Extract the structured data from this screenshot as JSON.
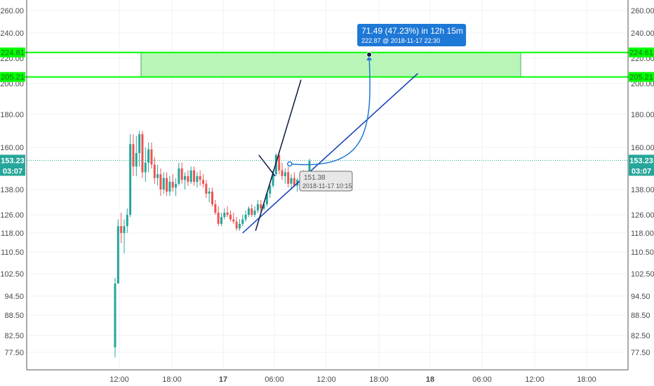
{
  "chart_data": {
    "type": "candlestick",
    "y_ticks": [
      "260.00",
      "240.00",
      "220.00",
      "200.00",
      "180.00",
      "160.00",
      "138.00",
      "126.00",
      "118.00",
      "110.50",
      "102.50",
      "94.50",
      "88.50",
      "82.50",
      "77.50"
    ],
    "x_ticks": [
      "12:00",
      "18:00",
      "17",
      "06:00",
      "12:00",
      "18:00",
      "18",
      "06:00",
      "12:00",
      "18:00"
    ],
    "grid": true,
    "candles": [
      {
        "o": 79,
        "h": 101,
        "l": 76,
        "c": 99
      },
      {
        "o": 99,
        "h": 124,
        "l": 99,
        "c": 121
      },
      {
        "o": 121,
        "h": 127,
        "l": 114,
        "c": 118
      },
      {
        "o": 118,
        "h": 124,
        "l": 110,
        "c": 121
      },
      {
        "o": 121,
        "h": 129,
        "l": 118,
        "c": 126
      },
      {
        "o": 126,
        "h": 168,
        "l": 125,
        "c": 162
      },
      {
        "o": 162,
        "h": 168,
        "l": 145,
        "c": 150
      },
      {
        "o": 150,
        "h": 167,
        "l": 145,
        "c": 157
      },
      {
        "o": 157,
        "h": 170,
        "l": 150,
        "c": 168
      },
      {
        "o": 168,
        "h": 170,
        "l": 144,
        "c": 147
      },
      {
        "o": 147,
        "h": 160,
        "l": 142,
        "c": 152
      },
      {
        "o": 152,
        "h": 163,
        "l": 147,
        "c": 159
      },
      {
        "o": 159,
        "h": 163,
        "l": 149,
        "c": 151
      },
      {
        "o": 151,
        "h": 155,
        "l": 141,
        "c": 144
      },
      {
        "o": 144,
        "h": 151,
        "l": 140,
        "c": 146
      },
      {
        "o": 146,
        "h": 149,
        "l": 135,
        "c": 138
      },
      {
        "o": 138,
        "h": 147,
        "l": 136,
        "c": 144
      },
      {
        "o": 144,
        "h": 147,
        "l": 135,
        "c": 137
      },
      {
        "o": 137,
        "h": 145,
        "l": 135,
        "c": 142
      },
      {
        "o": 142,
        "h": 146,
        "l": 137,
        "c": 139
      },
      {
        "o": 139,
        "h": 144,
        "l": 135,
        "c": 141
      },
      {
        "o": 141,
        "h": 152,
        "l": 140,
        "c": 149
      },
      {
        "o": 149,
        "h": 152,
        "l": 141,
        "c": 143
      },
      {
        "o": 143,
        "h": 147,
        "l": 138,
        "c": 145
      },
      {
        "o": 145,
        "h": 148,
        "l": 140,
        "c": 142
      },
      {
        "o": 142,
        "h": 150,
        "l": 141,
        "c": 148
      },
      {
        "o": 148,
        "h": 150,
        "l": 140,
        "c": 142
      },
      {
        "o": 142,
        "h": 147,
        "l": 139,
        "c": 145
      },
      {
        "o": 145,
        "h": 148,
        "l": 140,
        "c": 143
      },
      {
        "o": 143,
        "h": 146,
        "l": 139,
        "c": 141
      },
      {
        "o": 141,
        "h": 143,
        "l": 134,
        "c": 136
      },
      {
        "o": 136,
        "h": 139,
        "l": 132,
        "c": 137
      },
      {
        "o": 137,
        "h": 139,
        "l": 130,
        "c": 131
      },
      {
        "o": 131,
        "h": 133,
        "l": 126,
        "c": 127
      },
      {
        "o": 127,
        "h": 130,
        "l": 121,
        "c": 122
      },
      {
        "o": 122,
        "h": 127,
        "l": 121,
        "c": 125
      },
      {
        "o": 125,
        "h": 129,
        "l": 124,
        "c": 127
      },
      {
        "o": 127,
        "h": 130,
        "l": 125,
        "c": 126
      },
      {
        "o": 126,
        "h": 128,
        "l": 123,
        "c": 124
      },
      {
        "o": 124,
        "h": 127,
        "l": 122,
        "c": 123
      },
      {
        "o": 123,
        "h": 125,
        "l": 119,
        "c": 120
      },
      {
        "o": 120,
        "h": 124,
        "l": 119,
        "c": 122
      },
      {
        "o": 122,
        "h": 126,
        "l": 121,
        "c": 124
      },
      {
        "o": 124,
        "h": 128,
        "l": 123,
        "c": 126
      },
      {
        "o": 126,
        "h": 130,
        "l": 125,
        "c": 129
      },
      {
        "o": 129,
        "h": 131,
        "l": 125,
        "c": 126
      },
      {
        "o": 126,
        "h": 130,
        "l": 125,
        "c": 128
      },
      {
        "o": 128,
        "h": 133,
        "l": 127,
        "c": 131
      },
      {
        "o": 131,
        "h": 133,
        "l": 127,
        "c": 129
      },
      {
        "o": 129,
        "h": 132,
        "l": 128,
        "c": 131
      },
      {
        "o": 131,
        "h": 137,
        "l": 130,
        "c": 136
      },
      {
        "o": 136,
        "h": 141,
        "l": 134,
        "c": 140
      },
      {
        "o": 140,
        "h": 148,
        "l": 139,
        "c": 146
      },
      {
        "o": 146,
        "h": 157,
        "l": 145,
        "c": 156
      },
      {
        "o": 156,
        "h": 158,
        "l": 146,
        "c": 148
      },
      {
        "o": 148,
        "h": 152,
        "l": 143,
        "c": 145
      },
      {
        "o": 145,
        "h": 149,
        "l": 141,
        "c": 147
      },
      {
        "o": 147,
        "h": 150,
        "l": 139,
        "c": 141
      },
      {
        "o": 141,
        "h": 146,
        "l": 138,
        "c": 144
      },
      {
        "o": 144,
        "h": 147,
        "l": 139,
        "c": 140
      },
      {
        "o": 140,
        "h": 144,
        "l": 137,
        "c": 143
      },
      {
        "o": 143,
        "h": 147,
        "l": 140,
        "c": 146
      },
      {
        "o": 146,
        "h": 148,
        "l": 141,
        "c": 142
      },
      {
        "o": 142,
        "h": 146,
        "l": 140,
        "c": 145
      },
      {
        "o": 145,
        "h": 154,
        "l": 144,
        "c": 153
      }
    ],
    "zone": {
      "top": "224.61",
      "bottom": "205.21"
    },
    "trendlines": [
      {
        "from": {
          "t": "17 03:00",
          "p": 118
        },
        "to": {
          "t": "18 06:00",
          "p": 208
        }
      },
      {
        "from": {
          "t": "17 05:00",
          "p": 119
        },
        "to": {
          "t": "17 12:00",
          "p": 203
        }
      },
      {
        "from": {
          "t": "17 05:30",
          "p": 156
        },
        "to": {
          "t": "17 08:00",
          "p": 145
        }
      }
    ],
    "measure": {
      "title": "71.49 (47.23%) in 12h 15m",
      "detail": "222.87 @ 2018-11-17  22:30",
      "start": {
        "price": 151.38,
        "time": "2018-11-17 10:15"
      },
      "end": {
        "price": 222.87,
        "time": "2018-11-17 22:30"
      }
    },
    "start_tooltip": {
      "price": "151.38",
      "time": "2018-11-17 10:15"
    },
    "last_price": "153.23",
    "countdown": "03:07",
    "colors": {
      "up": "#26a69a",
      "down": "#ef5350",
      "zone_fill": "#b9f5b9",
      "zone_line": "#00ff00",
      "trend": "#0d3ab8",
      "measure": "#1e78d6",
      "price_badge": "#26a69a",
      "dark_line": "#0b1a3e"
    }
  }
}
